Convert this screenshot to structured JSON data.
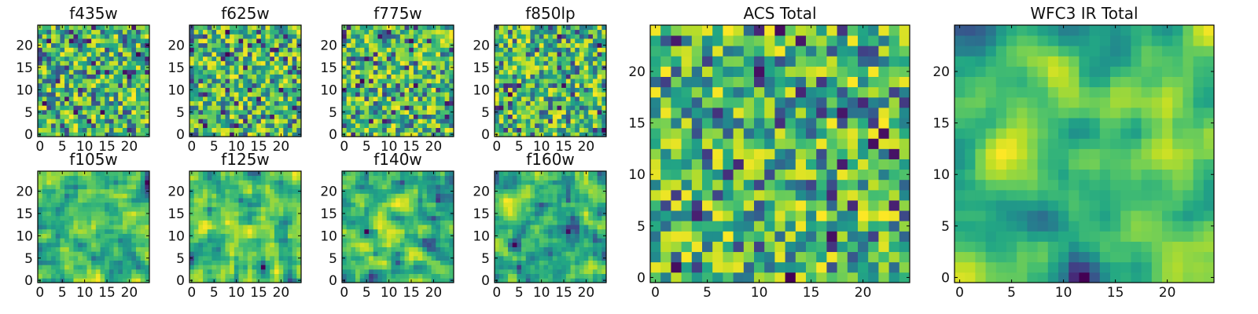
{
  "chart_data": [
    {
      "type": "heatmap",
      "title": "f435w",
      "seed": 11,
      "smooth": 0,
      "xticks": [
        0,
        5,
        10,
        15,
        20
      ],
      "yticks": [
        0,
        5,
        10,
        15,
        20
      ],
      "xlim": [
        0,
        25
      ],
      "ylim": [
        0,
        25
      ],
      "grid_size": 25,
      "colormap": "viridis"
    },
    {
      "type": "heatmap",
      "title": "f625w",
      "seed": 23,
      "smooth": 0,
      "xticks": [
        0,
        5,
        10,
        15,
        20
      ],
      "yticks": [
        0,
        5,
        10,
        15,
        20
      ],
      "xlim": [
        0,
        25
      ],
      "ylim": [
        0,
        25
      ],
      "grid_size": 25,
      "colormap": "viridis"
    },
    {
      "type": "heatmap",
      "title": "f775w",
      "seed": 37,
      "smooth": 0,
      "xticks": [
        0,
        5,
        10,
        15,
        20
      ],
      "yticks": [
        0,
        5,
        10,
        15,
        20
      ],
      "xlim": [
        0,
        25
      ],
      "ylim": [
        0,
        25
      ],
      "grid_size": 25,
      "colormap": "viridis"
    },
    {
      "type": "heatmap",
      "title": "f850lp",
      "seed": 41,
      "smooth": 0,
      "xticks": [
        0,
        5,
        10,
        15,
        20
      ],
      "yticks": [
        0,
        5,
        10,
        15,
        20
      ],
      "xlim": [
        0,
        25
      ],
      "ylim": [
        0,
        25
      ],
      "grid_size": 25,
      "colormap": "viridis"
    },
    {
      "type": "heatmap",
      "title": "f105w",
      "seed": 53,
      "smooth": 1,
      "xticks": [
        0,
        5,
        10,
        15,
        20
      ],
      "yticks": [
        0,
        5,
        10,
        15,
        20
      ],
      "xlim": [
        0,
        25
      ],
      "ylim": [
        0,
        25
      ],
      "grid_size": 25,
      "colormap": "viridis"
    },
    {
      "type": "heatmap",
      "title": "f125w",
      "seed": 67,
      "smooth": 1,
      "xticks": [
        0,
        5,
        10,
        15,
        20
      ],
      "yticks": [
        0,
        5,
        10,
        15,
        20
      ],
      "xlim": [
        0,
        25
      ],
      "ylim": [
        0,
        25
      ],
      "grid_size": 25,
      "colormap": "viridis"
    },
    {
      "type": "heatmap",
      "title": "f140w",
      "seed": 71,
      "smooth": 1,
      "xticks": [
        0,
        5,
        10,
        15,
        20
      ],
      "yticks": [
        0,
        5,
        10,
        15,
        20
      ],
      "xlim": [
        0,
        25
      ],
      "ylim": [
        0,
        25
      ],
      "grid_size": 25,
      "colormap": "viridis"
    },
    {
      "type": "heatmap",
      "title": "f160w",
      "seed": 83,
      "smooth": 1,
      "xticks": [
        0,
        5,
        10,
        15,
        20
      ],
      "yticks": [
        0,
        5,
        10,
        15,
        20
      ],
      "xlim": [
        0,
        25
      ],
      "ylim": [
        0,
        25
      ],
      "grid_size": 25,
      "colormap": "viridis"
    },
    {
      "type": "heatmap",
      "title": "ACS Total",
      "seed": 97,
      "smooth": 0,
      "xticks": [
        0,
        5,
        10,
        15,
        20
      ],
      "yticks": [
        0,
        5,
        10,
        15,
        20
      ],
      "xlim": [
        0,
        25
      ],
      "ylim": [
        0,
        25
      ],
      "grid_size": 25,
      "colormap": "viridis"
    },
    {
      "type": "heatmap",
      "title": "WFC3 IR Total",
      "seed": 109,
      "smooth": 2,
      "xticks": [
        0,
        5,
        10,
        15,
        20
      ],
      "yticks": [
        0,
        5,
        10,
        15,
        20
      ],
      "xlim": [
        0,
        25
      ],
      "ylim": [
        0,
        25
      ],
      "grid_size": 25,
      "colormap": "viridis"
    }
  ]
}
